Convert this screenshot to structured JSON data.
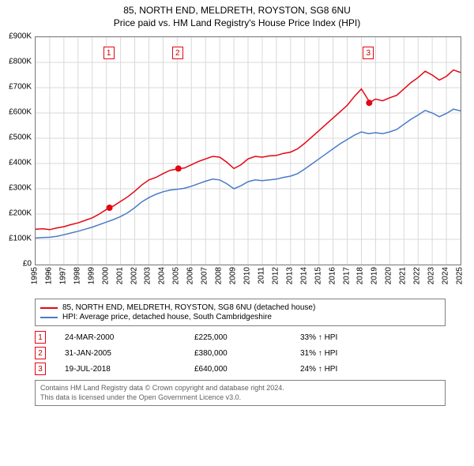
{
  "titles": {
    "main": "85, NORTH END, MELDRETH, ROYSTON, SG8 6NU",
    "sub": "Price paid vs. HM Land Registry's House Price Index (HPI)"
  },
  "chart": {
    "type": "line",
    "background_color": "#ffffff",
    "grid_color": "#d9d9d9",
    "border_color": "#808080",
    "x_axis": {
      "min": 1995,
      "max": 2025,
      "ticks": [
        1995,
        1996,
        1997,
        1998,
        1999,
        2000,
        2001,
        2002,
        2003,
        2004,
        2005,
        2006,
        2007,
        2008,
        2009,
        2010,
        2011,
        2012,
        2013,
        2014,
        2015,
        2016,
        2017,
        2018,
        2019,
        2020,
        2021,
        2022,
        2023,
        2024,
        2025
      ],
      "label_fontsize": 10
    },
    "y_axis": {
      "min": 0,
      "max": 900000,
      "ticks": [
        0,
        100000,
        200000,
        300000,
        400000,
        500000,
        600000,
        700000,
        800000,
        900000
      ],
      "tick_labels": [
        "£0",
        "£100K",
        "£200K",
        "£300K",
        "£400K",
        "£500K",
        "£600K",
        "£700K",
        "£800K",
        "£900K"
      ],
      "label_fontsize": 10
    },
    "series": [
      {
        "id": "property",
        "label": "85, NORTH END, MELDRETH, ROYSTON, SG8 6NU (detached house)",
        "color": "#e30613",
        "line_width": 1.5,
        "points": [
          [
            1995.0,
            140000
          ],
          [
            1995.5,
            142000
          ],
          [
            1996.0,
            138000
          ],
          [
            1996.5,
            145000
          ],
          [
            1997.0,
            150000
          ],
          [
            1997.5,
            158000
          ],
          [
            1998.0,
            165000
          ],
          [
            1998.5,
            175000
          ],
          [
            1999.0,
            185000
          ],
          [
            1999.5,
            200000
          ],
          [
            2000.0,
            218000
          ],
          [
            2000.22,
            225000
          ],
          [
            2000.5,
            232000
          ],
          [
            2001.0,
            250000
          ],
          [
            2001.5,
            268000
          ],
          [
            2002.0,
            290000
          ],
          [
            2002.5,
            315000
          ],
          [
            2003.0,
            335000
          ],
          [
            2003.5,
            345000
          ],
          [
            2004.0,
            360000
          ],
          [
            2004.5,
            373000
          ],
          [
            2005.0,
            378000
          ],
          [
            2005.08,
            380000
          ],
          [
            2005.5,
            382000
          ],
          [
            2006.0,
            395000
          ],
          [
            2006.5,
            408000
          ],
          [
            2007.0,
            418000
          ],
          [
            2007.5,
            428000
          ],
          [
            2008.0,
            425000
          ],
          [
            2008.5,
            405000
          ],
          [
            2009.0,
            380000
          ],
          [
            2009.5,
            395000
          ],
          [
            2010.0,
            418000
          ],
          [
            2010.5,
            428000
          ],
          [
            2011.0,
            425000
          ],
          [
            2011.5,
            430000
          ],
          [
            2012.0,
            432000
          ],
          [
            2012.5,
            440000
          ],
          [
            2013.0,
            445000
          ],
          [
            2013.5,
            458000
          ],
          [
            2014.0,
            480000
          ],
          [
            2014.5,
            505000
          ],
          [
            2015.0,
            530000
          ],
          [
            2015.5,
            555000
          ],
          [
            2016.0,
            580000
          ],
          [
            2016.5,
            605000
          ],
          [
            2017.0,
            630000
          ],
          [
            2017.5,
            665000
          ],
          [
            2018.0,
            695000
          ],
          [
            2018.5,
            650000
          ],
          [
            2018.55,
            640000
          ],
          [
            2019.0,
            655000
          ],
          [
            2019.5,
            648000
          ],
          [
            2020.0,
            660000
          ],
          [
            2020.5,
            670000
          ],
          [
            2021.0,
            695000
          ],
          [
            2021.5,
            720000
          ],
          [
            2022.0,
            740000
          ],
          [
            2022.5,
            765000
          ],
          [
            2023.0,
            750000
          ],
          [
            2023.5,
            730000
          ],
          [
            2024.0,
            745000
          ],
          [
            2024.5,
            770000
          ],
          [
            2025.0,
            760000
          ]
        ]
      },
      {
        "id": "hpi",
        "label": "HPI: Average price, detached house, South Cambridgeshire",
        "color": "#4a7bc8",
        "line_width": 1.5,
        "points": [
          [
            1995.0,
            105000
          ],
          [
            1995.5,
            107000
          ],
          [
            1996.0,
            108000
          ],
          [
            1996.5,
            112000
          ],
          [
            1997.0,
            118000
          ],
          [
            1997.5,
            125000
          ],
          [
            1998.0,
            132000
          ],
          [
            1998.5,
            140000
          ],
          [
            1999.0,
            148000
          ],
          [
            1999.5,
            158000
          ],
          [
            2000.0,
            168000
          ],
          [
            2000.5,
            178000
          ],
          [
            2001.0,
            190000
          ],
          [
            2001.5,
            205000
          ],
          [
            2002.0,
            225000
          ],
          [
            2002.5,
            248000
          ],
          [
            2003.0,
            265000
          ],
          [
            2003.5,
            278000
          ],
          [
            2004.0,
            288000
          ],
          [
            2004.5,
            295000
          ],
          [
            2005.0,
            298000
          ],
          [
            2005.5,
            302000
          ],
          [
            2006.0,
            310000
          ],
          [
            2006.5,
            320000
          ],
          [
            2007.0,
            330000
          ],
          [
            2007.5,
            338000
          ],
          [
            2008.0,
            335000
          ],
          [
            2008.5,
            320000
          ],
          [
            2009.0,
            300000
          ],
          [
            2009.5,
            312000
          ],
          [
            2010.0,
            328000
          ],
          [
            2010.5,
            335000
          ],
          [
            2011.0,
            332000
          ],
          [
            2011.5,
            335000
          ],
          [
            2012.0,
            338000
          ],
          [
            2012.5,
            345000
          ],
          [
            2013.0,
            350000
          ],
          [
            2013.5,
            360000
          ],
          [
            2014.0,
            378000
          ],
          [
            2014.5,
            398000
          ],
          [
            2015.0,
            418000
          ],
          [
            2015.5,
            438000
          ],
          [
            2016.0,
            458000
          ],
          [
            2016.5,
            478000
          ],
          [
            2017.0,
            495000
          ],
          [
            2017.5,
            512000
          ],
          [
            2018.0,
            525000
          ],
          [
            2018.5,
            518000
          ],
          [
            2019.0,
            522000
          ],
          [
            2019.5,
            518000
          ],
          [
            2020.0,
            525000
          ],
          [
            2020.5,
            535000
          ],
          [
            2021.0,
            555000
          ],
          [
            2021.5,
            575000
          ],
          [
            2022.0,
            592000
          ],
          [
            2022.5,
            610000
          ],
          [
            2023.0,
            600000
          ],
          [
            2023.5,
            585000
          ],
          [
            2024.0,
            598000
          ],
          [
            2024.5,
            615000
          ],
          [
            2025.0,
            608000
          ]
        ]
      }
    ],
    "sale_markers": [
      {
        "n": "1",
        "x": 2000.22,
        "y": 225000,
        "box_top_y": 860000
      },
      {
        "n": "2",
        "x": 2005.08,
        "y": 380000,
        "box_top_y": 860000
      },
      {
        "n": "3",
        "x": 2018.55,
        "y": 640000,
        "box_top_y": 860000
      }
    ],
    "marker_dot_color": "#e30613",
    "marker_dot_radius": 4,
    "marker_box_border": "#e30613"
  },
  "legend": {
    "border_color": "#808080",
    "rows": [
      {
        "color": "#e30613",
        "label": "85, NORTH END, MELDRETH, ROYSTON, SG8 6NU (detached house)"
      },
      {
        "color": "#4a7bc8",
        "label": "HPI: Average price, detached house, South Cambridgeshire"
      }
    ]
  },
  "sales_table": {
    "marker_border": "#e30613",
    "rows": [
      {
        "n": "1",
        "date": "24-MAR-2000",
        "price": "£225,000",
        "diff": "33% ↑ HPI"
      },
      {
        "n": "2",
        "date": "31-JAN-2005",
        "price": "£380,000",
        "diff": "31% ↑ HPI"
      },
      {
        "n": "3",
        "date": "19-JUL-2018",
        "price": "£640,000",
        "diff": "24% ↑ HPI"
      }
    ]
  },
  "footer": {
    "line1": "Contains HM Land Registry data © Crown copyright and database right 2024.",
    "line2": "This data is licensed under the Open Government Licence v3.0."
  }
}
